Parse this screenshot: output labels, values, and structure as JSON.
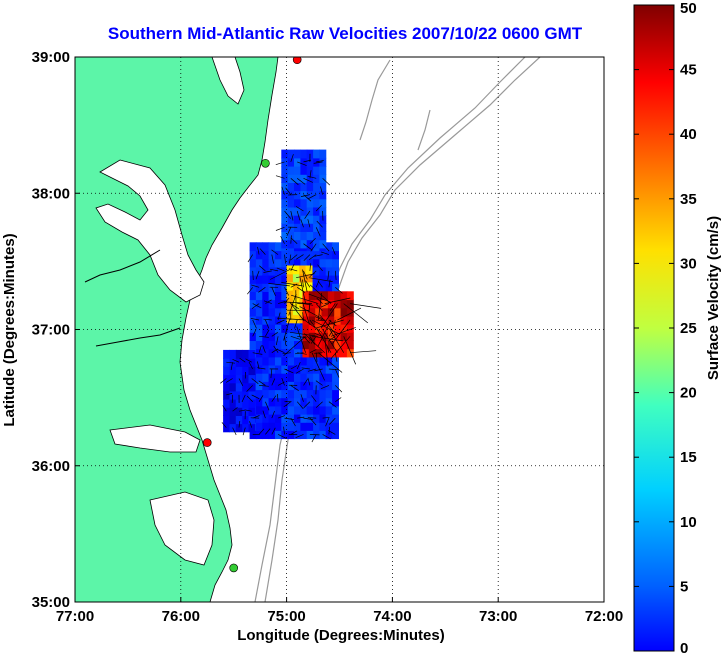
{
  "title": "Southern Mid-Atlantic Raw Velocities 2007/10/22 0600 GMT",
  "map": {
    "xlabel": "Longitude (Degrees:Minutes)",
    "ylabel": "Latitude (Degrees:Minutes)",
    "lon_range": [
      -77,
      -72
    ],
    "lat_range": [
      35,
      39
    ],
    "lon_ticks": [
      {
        "value": -77,
        "label": "77:00"
      },
      {
        "value": -76,
        "label": "76:00"
      },
      {
        "value": -75,
        "label": "75:00"
      },
      {
        "value": -74,
        "label": "74:00"
      },
      {
        "value": -73,
        "label": "73:00"
      },
      {
        "value": -72,
        "label": "72:00"
      }
    ],
    "lat_ticks": [
      {
        "value": 35,
        "label": "35:00"
      },
      {
        "value": 36,
        "label": "36:00"
      },
      {
        "value": 37,
        "label": "37:00"
      },
      {
        "value": 38,
        "label": "38:00"
      },
      {
        "value": 39,
        "label": "39:00"
      }
    ],
    "grid": "dotted",
    "land_color": "#5cf5a8",
    "bathymetry_color": "#999999",
    "stations": [
      {
        "lon": -74.9,
        "lat": 38.98,
        "color": "#ff0000"
      },
      {
        "lon": -75.2,
        "lat": 38.22,
        "color": "#33cc33"
      },
      {
        "lon": -75.75,
        "lat": 36.17,
        "color": "#ff0000"
      },
      {
        "lon": -75.5,
        "lat": 35.25,
        "color": "#33cc33"
      }
    ]
  },
  "colorbar": {
    "label": "Surface Velocity (cm/s)",
    "min": 0,
    "max": 50,
    "ticks": [
      {
        "value": 0,
        "label": "0"
      },
      {
        "value": 5,
        "label": "5"
      },
      {
        "value": 10,
        "label": "10"
      },
      {
        "value": 15,
        "label": "15"
      },
      {
        "value": 20,
        "label": "20"
      },
      {
        "value": 25,
        "label": "25"
      },
      {
        "value": 30,
        "label": "30"
      },
      {
        "value": 35,
        "label": "35"
      },
      {
        "value": 40,
        "label": "40"
      },
      {
        "value": 45,
        "label": "45"
      },
      {
        "value": 50,
        "label": "50"
      }
    ]
  },
  "chart_data": {
    "type": "heatmap",
    "x_units": "longitude (deg)",
    "y_units": "latitude (deg)",
    "value_units": "cm/s",
    "cell_size_deg": 0.06,
    "velocity_field": [
      {
        "lon_min": -75.35,
        "lon_max": -74.55,
        "lat_min": 36.2,
        "lat_max": 37.6,
        "speed": 8
      },
      {
        "lon_min": -75.05,
        "lon_max": -74.65,
        "lat_min": 37.6,
        "lat_max": 38.3,
        "speed": 9
      },
      {
        "lon_min": -75.6,
        "lon_max": -75.3,
        "lat_min": 36.25,
        "lat_max": 36.8,
        "speed": 6
      },
      {
        "lon_min": -75.0,
        "lon_max": -74.8,
        "lat_min": 37.05,
        "lat_max": 37.45,
        "speed": 32
      },
      {
        "lon_min": -74.85,
        "lon_max": -74.4,
        "lat_min": 36.8,
        "lat_max": 37.25,
        "speed": 45
      }
    ]
  }
}
